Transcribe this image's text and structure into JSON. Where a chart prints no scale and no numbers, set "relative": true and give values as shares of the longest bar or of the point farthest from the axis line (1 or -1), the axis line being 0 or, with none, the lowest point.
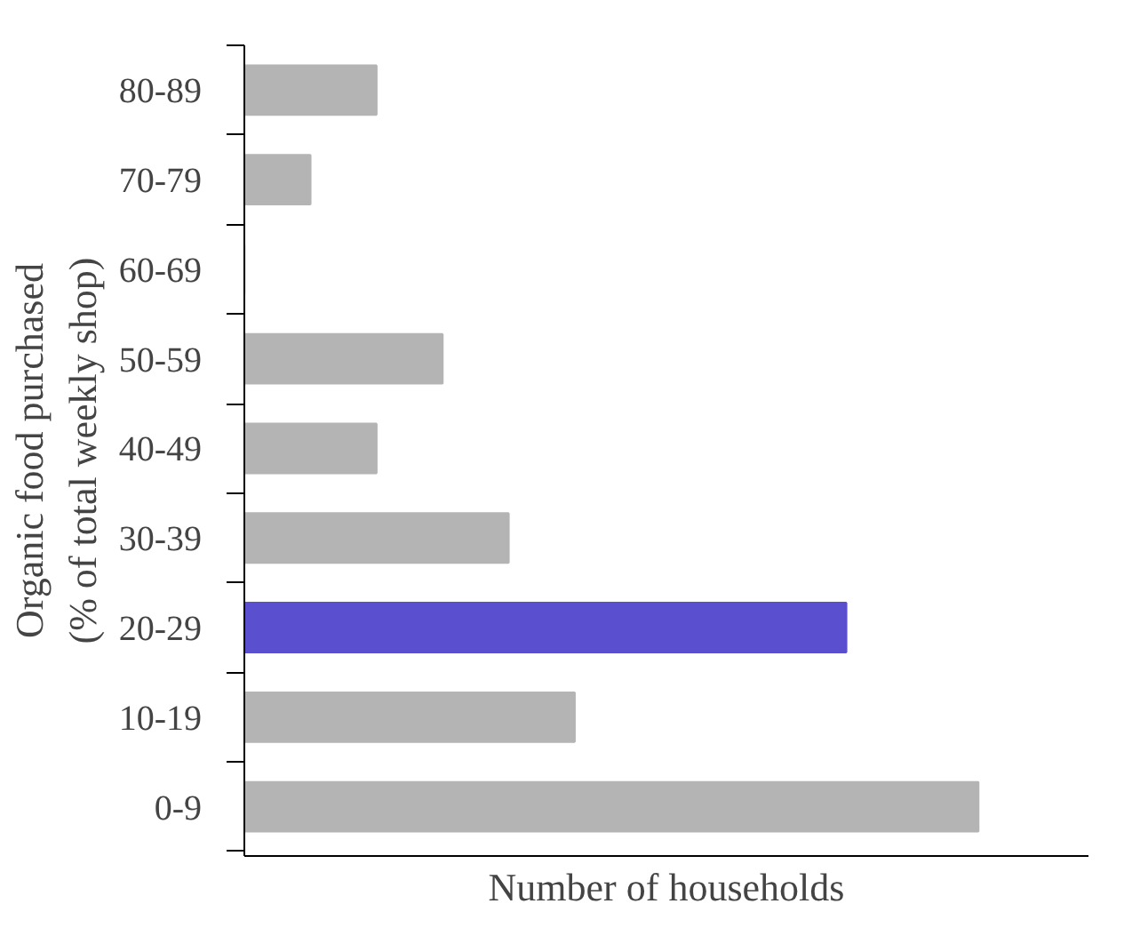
{
  "chart_data": {
    "type": "bar",
    "orientation": "horizontal",
    "relative": true,
    "ylabel": "Organic food purchased\n(% of total weekly shop)",
    "xlabel": "Number of households",
    "categories": [
      "80-89",
      "70-79",
      "60-69",
      "50-59",
      "40-49",
      "30-39",
      "20-29",
      "10-19",
      "0-9"
    ],
    "values": [
      0.18,
      0.09,
      0,
      0.27,
      0.18,
      0.36,
      0.82,
      0.45,
      1
    ],
    "colors": [
      "#b4b4b4",
      "#b4b4b4",
      "#b4b4b4",
      "#b4b4b4",
      "#b4b4b4",
      "#b4b4b4",
      "#5a4fcf",
      "#b4b4b4",
      "#b4b4b4"
    ]
  }
}
